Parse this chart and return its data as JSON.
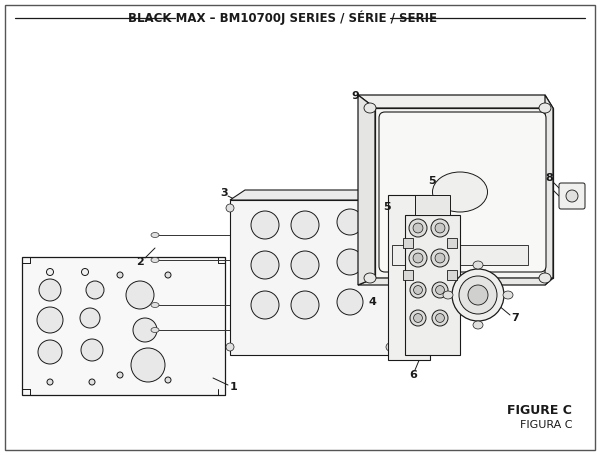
{
  "title": "BLACK MAX – BM10700J SERIES / SÉRIE / SERIE",
  "figure_label": "FIGURE C",
  "figure_label2": "FIGURA C",
  "bg_color": "#ffffff",
  "line_color": "#1a1a1a",
  "text_color": "#1a1a1a",
  "title_fontsize": 8.5,
  "label_fontsize": 8,
  "fig_label_fontsize": 9
}
